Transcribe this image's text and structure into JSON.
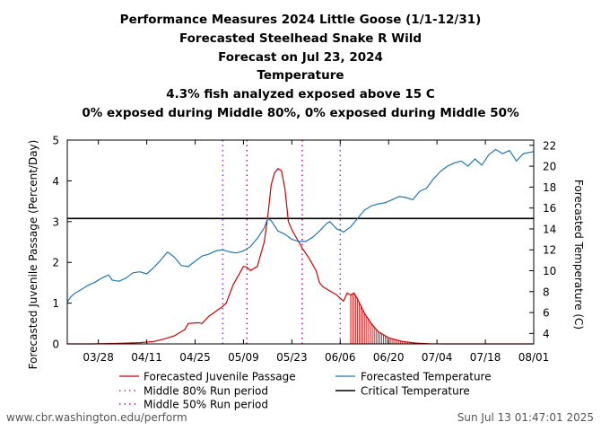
{
  "titles": [
    "Performance Measures 2024 Little Goose (1/1-12/31)",
    "Forecasted Steelhead Snake R Wild",
    "Forecast on Jul 23, 2024",
    "Temperature",
    "4.3% fish analyzed exposed above 15 C",
    "0% exposed during Middle 80%, 0% exposed during Middle 50%"
  ],
  "footer": {
    "left": "www.cbr.washington.edu/perform",
    "right": "Sun Jul 13 01:47:01 2025"
  },
  "chart_data": {
    "type": "line",
    "x_axis": {
      "ticks": [
        "03/28",
        "04/11",
        "04/25",
        "05/09",
        "05/23",
        "06/06",
        "06/20",
        "07/04",
        "07/18",
        "08/01"
      ],
      "range": [
        "03/19",
        "08/01"
      ]
    },
    "y_axis_left": {
      "label": "Forecasted Juvenile Passage (Percent/Day)",
      "ticks": [
        0,
        1,
        2,
        3,
        4,
        5
      ],
      "range": [
        0,
        5
      ]
    },
    "y_axis_right": {
      "label": "Forecasted Temperature (C)",
      "ticks": [
        4,
        6,
        8,
        10,
        12,
        14,
        16,
        18,
        20,
        22
      ],
      "range": [
        3,
        22.5
      ]
    },
    "legend": {
      "passage": "Forecasted Juvenile Passage",
      "temperature": "Forecasted Temperature",
      "middle80": "Middle 80% Run period",
      "critical": "Critical Temperature",
      "middle50": "Middle 50% Run period"
    },
    "critical_temperature": 15,
    "middle80_run_period": [
      "05/03",
      "06/06"
    ],
    "middle50_run_period": [
      "05/10",
      "05/26"
    ],
    "forecast_start": "06/09",
    "colors": {
      "passage": "#cc0000",
      "temperature": "#1f77b4",
      "critical": "#000000",
      "middle80": "#9b30d0",
      "middle50": "#cc00aa"
    },
    "series": [
      {
        "name": "Forecasted Juvenile Passage",
        "axis": "left",
        "points": [
          [
            "03/19",
            0
          ],
          [
            "03/26",
            0
          ],
          [
            "04/02",
            0.01
          ],
          [
            "04/09",
            0.03
          ],
          [
            "04/13",
            0.06
          ],
          [
            "04/16",
            0.12
          ],
          [
            "04/19",
            0.2
          ],
          [
            "04/22",
            0.35
          ],
          [
            "04/23",
            0.5
          ],
          [
            "04/26",
            0.52
          ],
          [
            "04/27",
            0.5
          ],
          [
            "04/29",
            0.68
          ],
          [
            "05/01",
            0.8
          ],
          [
            "05/03",
            0.92
          ],
          [
            "05/04",
            1.0
          ],
          [
            "05/06",
            1.45
          ],
          [
            "05/08",
            1.75
          ],
          [
            "05/09",
            1.9
          ],
          [
            "05/10",
            1.88
          ],
          [
            "05/11",
            1.8
          ],
          [
            "05/12",
            1.85
          ],
          [
            "05/13",
            1.9
          ],
          [
            "05/14",
            2.2
          ],
          [
            "05/15",
            2.5
          ],
          [
            "05/16",
            3.1
          ],
          [
            "05/17",
            3.9
          ],
          [
            "05/18",
            4.2
          ],
          [
            "05/19",
            4.3
          ],
          [
            "05/20",
            4.25
          ],
          [
            "05/21",
            3.8
          ],
          [
            "05/22",
            3.0
          ],
          [
            "05/23",
            2.8
          ],
          [
            "05/25",
            2.5
          ],
          [
            "05/26",
            2.35
          ],
          [
            "05/28",
            2.1
          ],
          [
            "05/30",
            1.8
          ],
          [
            "05/31",
            1.5
          ],
          [
            "06/01",
            1.4
          ],
          [
            "06/03",
            1.3
          ],
          [
            "06/05",
            1.2
          ],
          [
            "06/06",
            1.12
          ],
          [
            "06/07",
            1.05
          ],
          [
            "06/08",
            1.25
          ],
          [
            "06/09",
            1.2
          ],
          [
            "06/10",
            1.25
          ],
          [
            "06/11",
            1.1
          ],
          [
            "06/13",
            0.75
          ],
          [
            "06/15",
            0.5
          ],
          [
            "06/17",
            0.3
          ],
          [
            "06/20",
            0.15
          ],
          [
            "06/24",
            0.06
          ],
          [
            "06/28",
            0.02
          ],
          [
            "07/02",
            0.005
          ],
          [
            "07/06",
            0
          ],
          [
            "08/01",
            0
          ]
        ]
      },
      {
        "name": "Forecasted Temperature",
        "axis": "right",
        "points": [
          [
            "03/19",
            7.0
          ],
          [
            "03/20",
            7.5
          ],
          [
            "03/21",
            7.8
          ],
          [
            "03/23",
            8.2
          ],
          [
            "03/25",
            8.6
          ],
          [
            "03/27",
            8.9
          ],
          [
            "03/29",
            9.3
          ],
          [
            "03/31",
            9.6
          ],
          [
            "04/01",
            9.1
          ],
          [
            "04/03",
            9.0
          ],
          [
            "04/05",
            9.3
          ],
          [
            "04/07",
            9.8
          ],
          [
            "04/09",
            9.9
          ],
          [
            "04/11",
            9.7
          ],
          [
            "04/13",
            10.3
          ],
          [
            "04/15",
            11.0
          ],
          [
            "04/17",
            11.8
          ],
          [
            "04/19",
            11.3
          ],
          [
            "04/21",
            10.5
          ],
          [
            "04/23",
            10.4
          ],
          [
            "04/25",
            10.9
          ],
          [
            "04/27",
            11.4
          ],
          [
            "04/29",
            11.6
          ],
          [
            "05/01",
            11.9
          ],
          [
            "05/03",
            12.0
          ],
          [
            "05/05",
            11.8
          ],
          [
            "05/07",
            11.7
          ],
          [
            "05/09",
            11.9
          ],
          [
            "05/11",
            12.3
          ],
          [
            "05/13",
            13.1
          ],
          [
            "05/15",
            14.1
          ],
          [
            "05/16",
            15.0
          ],
          [
            "05/17",
            14.8
          ],
          [
            "05/18",
            14.3
          ],
          [
            "05/19",
            13.8
          ],
          [
            "05/21",
            13.5
          ],
          [
            "05/23",
            13.0
          ],
          [
            "05/25",
            12.8
          ],
          [
            "05/27",
            12.8
          ],
          [
            "05/29",
            13.2
          ],
          [
            "05/31",
            13.8
          ],
          [
            "06/02",
            14.5
          ],
          [
            "06/03",
            14.7
          ],
          [
            "06/05",
            14.0
          ],
          [
            "06/07",
            13.7
          ],
          [
            "06/09",
            14.2
          ],
          [
            "06/11",
            15.0
          ],
          [
            "06/13",
            15.8
          ],
          [
            "06/15",
            16.2
          ],
          [
            "06/17",
            16.4
          ],
          [
            "06/19",
            16.5
          ],
          [
            "06/21",
            16.8
          ],
          [
            "06/23",
            17.1
          ],
          [
            "06/25",
            17.0
          ],
          [
            "06/27",
            16.8
          ],
          [
            "06/29",
            17.6
          ],
          [
            "07/01",
            17.9
          ],
          [
            "07/03",
            18.8
          ],
          [
            "07/05",
            19.5
          ],
          [
            "07/07",
            20.0
          ],
          [
            "07/09",
            20.3
          ],
          [
            "07/11",
            20.5
          ],
          [
            "07/13",
            20.0
          ],
          [
            "07/15",
            20.7
          ],
          [
            "07/17",
            20.1
          ],
          [
            "07/19",
            21.1
          ],
          [
            "07/21",
            21.6
          ],
          [
            "07/23",
            21.2
          ],
          [
            "07/25",
            21.5
          ],
          [
            "07/27",
            20.5
          ],
          [
            "07/29",
            21.2
          ],
          [
            "08/01",
            21.4
          ]
        ]
      }
    ]
  }
}
